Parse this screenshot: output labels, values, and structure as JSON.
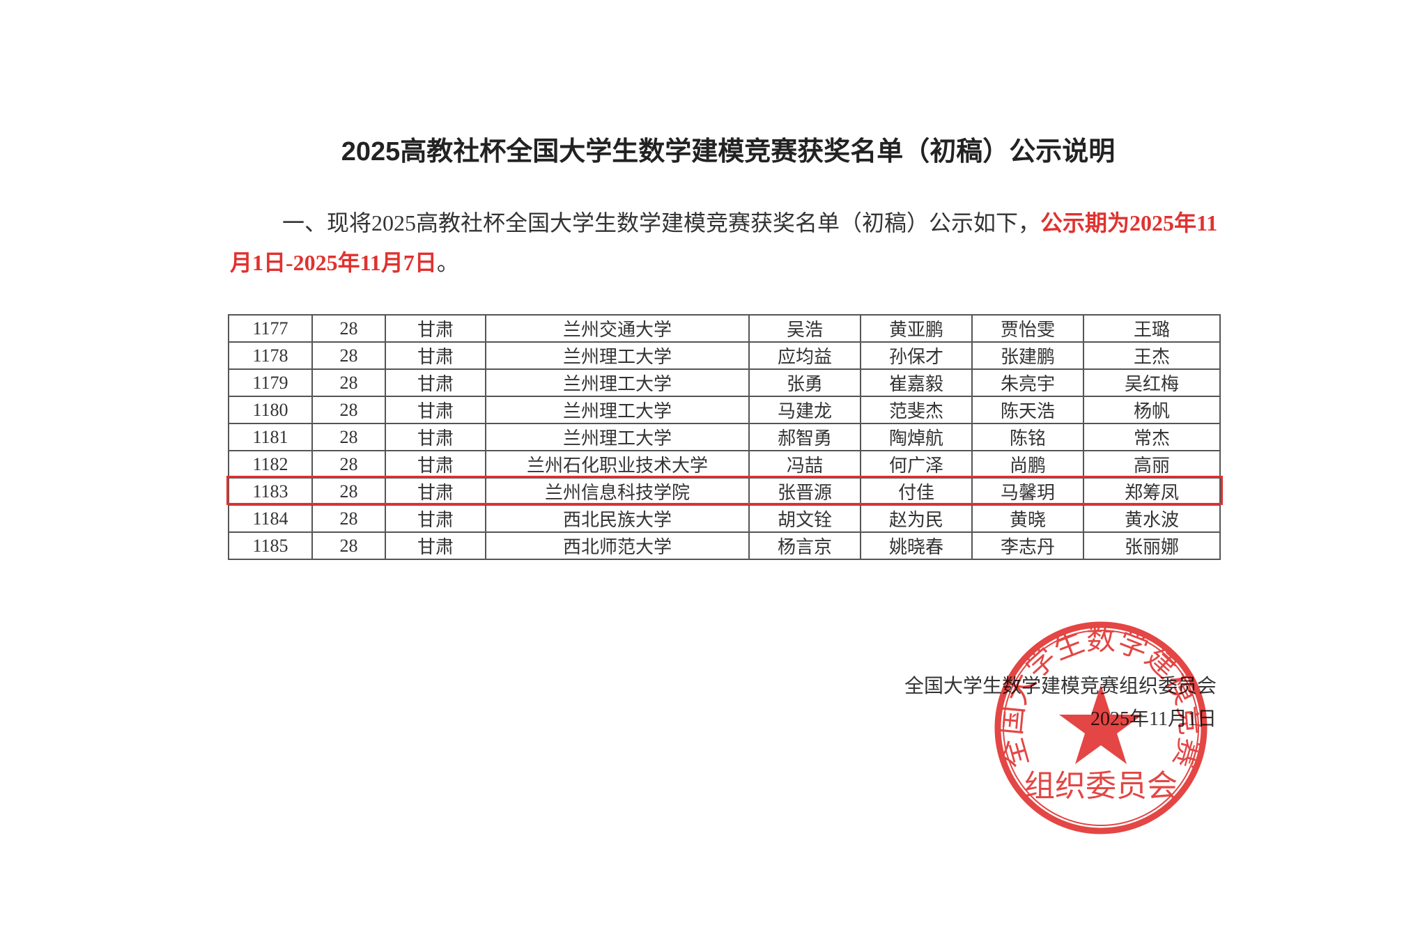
{
  "title": "2025高教社杯全国大学生数学建模竞赛获奖名单（初稿）公示说明",
  "notice": {
    "text": "一、现将2025高教社杯全国大学生数学建模竞赛获奖名单（初稿）公示如下，",
    "highlight": "公示期为2025年11月1日-2025年11月7日",
    "end": "。"
  },
  "table": {
    "rows": [
      [
        "1177",
        "28",
        "甘肃",
        "兰州交通大学",
        "吴浩",
        "黄亚鹏",
        "贾怡雯",
        "王璐"
      ],
      [
        "1178",
        "28",
        "甘肃",
        "兰州理工大学",
        "应均益",
        "孙保才",
        "张建鹏",
        "王杰"
      ],
      [
        "1179",
        "28",
        "甘肃",
        "兰州理工大学",
        "张勇",
        "崔嘉毅",
        "朱亮宇",
        "吴红梅"
      ],
      [
        "1180",
        "28",
        "甘肃",
        "兰州理工大学",
        "马建龙",
        "范斐杰",
        "陈天浩",
        "杨帆"
      ],
      [
        "1181",
        "28",
        "甘肃",
        "兰州理工大学",
        "郝智勇",
        "陶焯航",
        "陈铭",
        "常杰"
      ],
      [
        "1182",
        "28",
        "甘肃",
        "兰州石化职业技术大学",
        "冯喆",
        "何广泽",
        "尚鹏",
        "高丽"
      ],
      [
        "1183",
        "28",
        "甘肃",
        "兰州信息科技学院",
        "张晋源",
        "付佳",
        "马馨玥",
        "郑筹凤"
      ],
      [
        "1184",
        "28",
        "甘肃",
        "西北民族大学",
        "胡文铨",
        "赵为民",
        "黄晓",
        "黄水波"
      ],
      [
        "1185",
        "28",
        "甘肃",
        "西北师范大学",
        "杨言京",
        "姚晓春",
        "李志丹",
        "张丽娜"
      ]
    ]
  },
  "signature": {
    "organization": "全国大学生数学建模竞赛组织委员会",
    "date": "2025年11月1日"
  },
  "stamp": {
    "arc_text": "全国大学生数学建模竞赛",
    "bottom_text": "组织委员会"
  }
}
